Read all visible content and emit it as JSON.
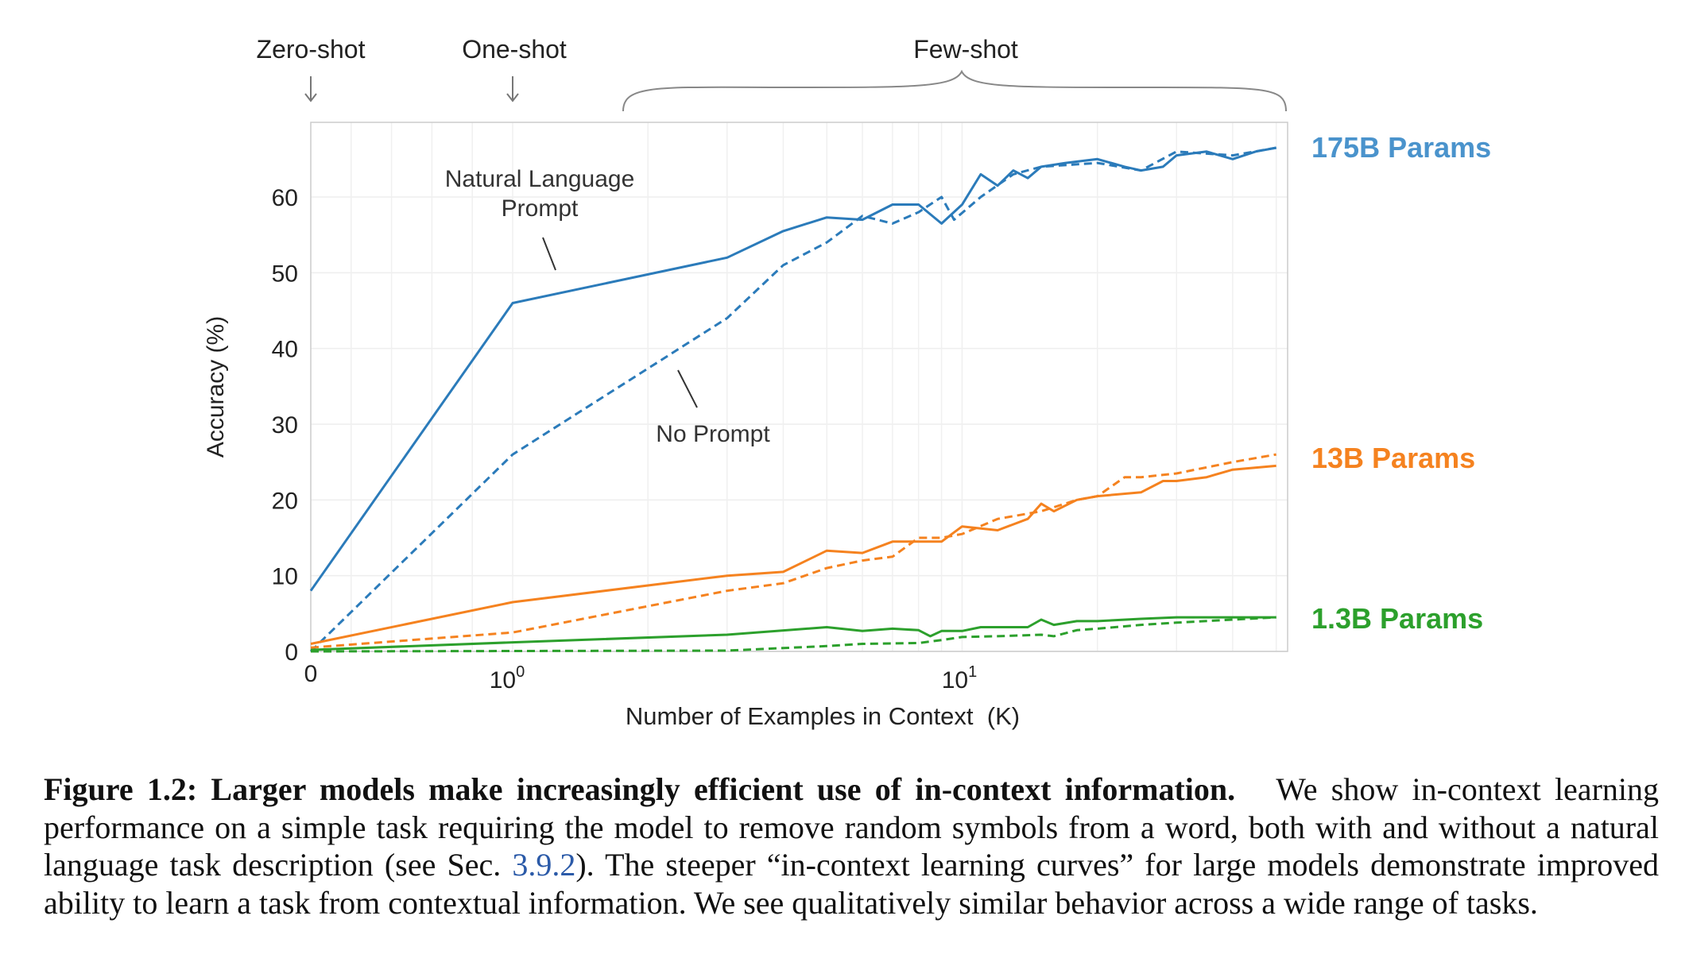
{
  "chart_data": {
    "type": "line",
    "title": "",
    "xlabel": "Number of Examples in Context  (K)",
    "ylabel": "Accuracy (%)",
    "xscale": "symlog (linear 0-1, log above 1)",
    "xlim": [
      0,
      53
    ],
    "ylim": [
      0,
      70
    ],
    "grid": true,
    "x_tick_labels": [
      {
        "value": 0,
        "label": "0"
      },
      {
        "value": 1,
        "base": "10",
        "exp": "0"
      },
      {
        "value": 10,
        "base": "10",
        "exp": "1"
      }
    ],
    "y_ticks": [
      0,
      10,
      20,
      30,
      40,
      50,
      60
    ],
    "regime_labels": {
      "zero_shot": "Zero-shot",
      "one_shot": "One-shot",
      "few_shot": "Few-shot"
    },
    "annotations": {
      "prompt_line1": "Natural Language",
      "prompt_line2": "Prompt",
      "no_prompt": "No Prompt"
    },
    "colors": {
      "175B": "#2b7bba",
      "13B": "#f5821f",
      "1.3B": "#2ca02c",
      "label_175B": "#4a93cc"
    },
    "legend": [
      "175B Params",
      "13B Params",
      "1.3B Params"
    ],
    "series": [
      {
        "model": "175B Params",
        "style": "solid",
        "x": [
          0,
          1,
          3,
          4,
          5,
          6,
          7,
          8,
          9,
          10,
          11,
          12,
          13,
          14,
          15,
          17,
          20,
          23,
          25,
          28,
          30,
          35,
          40,
          45,
          50
        ],
        "y": [
          8,
          46,
          52,
          55.5,
          57.3,
          57,
          59,
          59,
          56.5,
          59,
          63,
          61.5,
          63.5,
          62.5,
          64,
          64.5,
          65,
          64,
          63.5,
          64,
          65.5,
          66,
          65,
          66,
          66.5
        ]
      },
      {
        "model": "175B Params",
        "style": "dashed",
        "x": [
          0,
          1,
          3,
          4,
          5,
          6,
          7,
          8,
          9,
          9.6,
          11,
          13,
          15,
          20,
          25,
          30,
          40,
          50
        ],
        "y": [
          0,
          26,
          44,
          51,
          54,
          57.5,
          56.5,
          58,
          60,
          57,
          60,
          63,
          64,
          64.5,
          63.5,
          66,
          65.5,
          66.5
        ]
      },
      {
        "model": "13B Params",
        "style": "solid",
        "x": [
          0,
          1,
          3,
          4,
          5,
          6,
          7,
          8,
          9,
          10,
          12,
          14,
          15,
          16,
          18,
          20,
          25,
          28,
          30,
          35,
          40,
          50
        ],
        "y": [
          1,
          6.5,
          10,
          10.5,
          13.3,
          13,
          14.5,
          14.5,
          14.5,
          16.5,
          16,
          17.5,
          19.5,
          18.5,
          20,
          20.5,
          21,
          22.5,
          22.5,
          23,
          24,
          24.5
        ]
      },
      {
        "model": "13B Params",
        "style": "dashed",
        "x": [
          0,
          1,
          3,
          4,
          5,
          6,
          7,
          8,
          9,
          10,
          12,
          15,
          18,
          20,
          23,
          25,
          30,
          40,
          50
        ],
        "y": [
          0.5,
          2.5,
          8,
          9,
          11,
          12,
          12.5,
          15,
          15,
          15.5,
          17.5,
          18.5,
          20,
          20.5,
          23,
          23,
          23.5,
          25,
          26
        ]
      },
      {
        "model": "1.3B Params",
        "style": "solid",
        "x": [
          0,
          1,
          3,
          5,
          6,
          7,
          8,
          8.5,
          9,
          10,
          11,
          14,
          15,
          16,
          18,
          20,
          25,
          30,
          40,
          50
        ],
        "y": [
          0.2,
          1.2,
          2.2,
          3.2,
          2.7,
          3,
          2.8,
          2,
          2.7,
          2.7,
          3.2,
          3.2,
          4.2,
          3.5,
          4,
          4,
          4.3,
          4.5,
          4.5,
          4.5
        ]
      },
      {
        "model": "1.3B Params",
        "style": "dashed",
        "x": [
          0,
          3,
          5,
          6,
          8,
          9,
          10,
          12,
          15,
          16,
          18,
          20,
          25,
          30,
          40,
          50
        ],
        "y": [
          0,
          0.1,
          0.7,
          1,
          1.1,
          1.5,
          1.9,
          2,
          2.2,
          2,
          2.8,
          3,
          3.5,
          3.8,
          4.2,
          4.5
        ]
      }
    ]
  },
  "caption": {
    "label": "Figure 1.2: Larger models make increasingly efficient use of in-context information.",
    "text_before_link": "We show in-context learning performance on a simple task requiring the model to remove random symbols from a word, both with and without a natural language task description (see Sec.",
    "link": "3.9.2",
    "text_after_link": "). The steeper “in-context learning curves” for large models demonstrate improved ability to learn a task from contextual information. We see qualitatively similar behavior across a wide range of tasks."
  }
}
